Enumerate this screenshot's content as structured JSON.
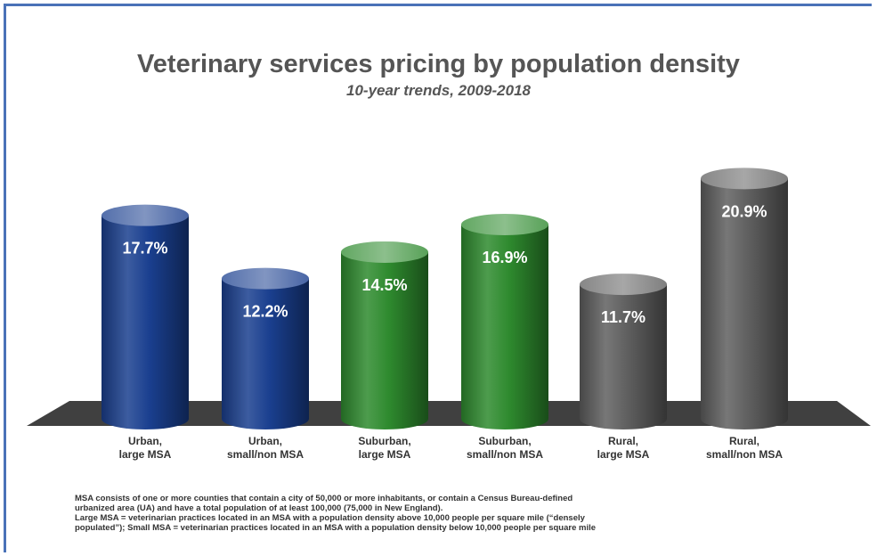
{
  "chart_data": {
    "type": "bar",
    "title": "Veterinary services pricing by population density",
    "subtitle": "10-year trends, 2009-2018",
    "categories": [
      [
        "Urban,",
        "large MSA"
      ],
      [
        "Urban,",
        "small/non MSA"
      ],
      [
        "Suburban,",
        "large MSA"
      ],
      [
        "Suburban,",
        "small/non MSA"
      ],
      [
        "Rural,",
        "large MSA"
      ],
      [
        "Rural,",
        "small/non MSA"
      ]
    ],
    "values": [
      17.7,
      12.2,
      14.5,
      16.9,
      11.7,
      20.9
    ],
    "data_labels": [
      "17.7%",
      "12.2%",
      "14.5%",
      "16.9%",
      "11.7%",
      "20.9%"
    ],
    "bar_colors": [
      "#1a3f8f",
      "#1a3f8f",
      "#2e8a2e",
      "#2e8a2e",
      "#5f5f5f",
      "#5f5f5f"
    ],
    "ylim": [
      0,
      25
    ],
    "grid": false,
    "legend": "none"
  },
  "footnote": [
    "MSA consists of one or more counties that contain a city of 50,000 or more inhabitants, or contain a Census Bureau-defined",
    "urbanized area (UA) and have a total population of at least 100,000 (75,000 in New England).",
    "Large MSA = veterinarian practices located in an MSA with a population density above 10,000 people per square mile (“densely",
    "populated”); Small MSA = veterinarian practices located in an MSA with a population density below 10,000 people per square mile"
  ]
}
